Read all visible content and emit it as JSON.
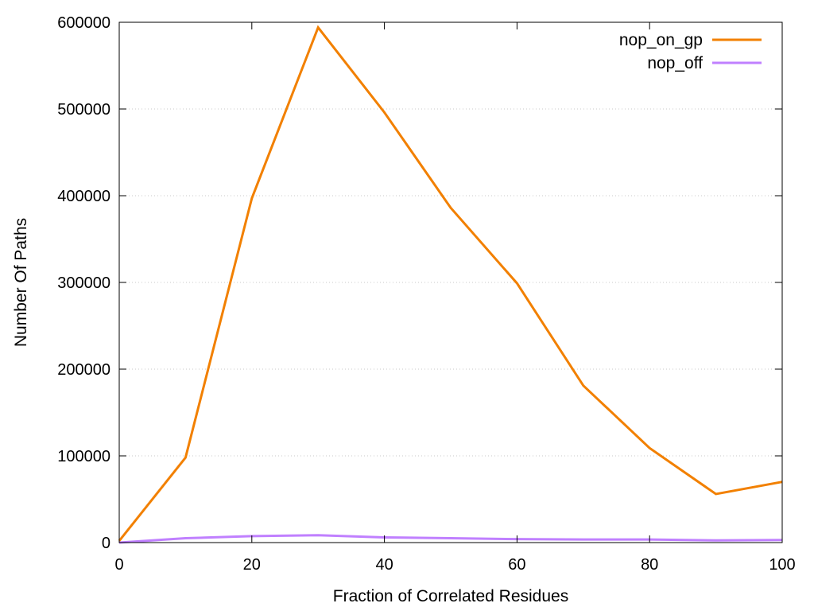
{
  "chart_data": {
    "type": "line",
    "title": "",
    "xlabel": "Fraction of Correlated Residues",
    "ylabel": "Number Of Paths",
    "xlim": [
      0,
      100
    ],
    "ylim": [
      0,
      600000
    ],
    "xticks": [
      0,
      20,
      40,
      60,
      80,
      100
    ],
    "yticks": [
      0,
      100000,
      200000,
      300000,
      400000,
      500000,
      600000
    ],
    "grid": "horizontal-dotted",
    "legend_position": "top-right",
    "x": [
      0,
      10,
      20,
      30,
      40,
      50,
      60,
      70,
      80,
      90,
      100
    ],
    "series": [
      {
        "name": "nop_on_gp",
        "color": "#f28000",
        "values": [
          2000,
          98000,
          397000,
          594000,
          496000,
          386000,
          299000,
          181000,
          109000,
          56000,
          70000
        ]
      },
      {
        "name": "nop_off",
        "color": "#c080ff",
        "values": [
          0,
          5000,
          7500,
          8500,
          6000,
          5000,
          4000,
          3500,
          3500,
          2500,
          3000
        ]
      }
    ]
  }
}
